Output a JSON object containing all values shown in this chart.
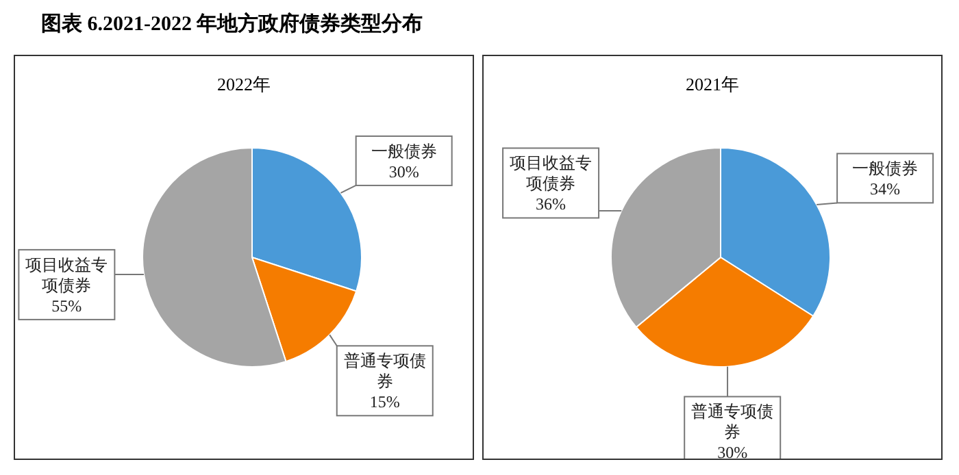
{
  "chart_data": [
    {
      "type": "pie",
      "title": "图表 6.2021-2022 年地方政府债券类型分布",
      "subtitle": "2022年",
      "categories": [
        "一般债券",
        "普通专项债券",
        "项目收益专项债券"
      ],
      "values": [
        30,
        15,
        55
      ],
      "value_labels": [
        "30%",
        "15%",
        "55%"
      ],
      "colors": [
        "#4a9ad8",
        "#f57c00",
        "#a5a5a5"
      ],
      "legend": false
    },
    {
      "type": "pie",
      "subtitle": "2021年",
      "categories": [
        "一般债券",
        "普通专项债券",
        "项目收益专项债券"
      ],
      "values": [
        34,
        30,
        36
      ],
      "value_labels": [
        "34%",
        "30%",
        "36%"
      ],
      "colors": [
        "#4a9ad8",
        "#f57c00",
        "#a5a5a5"
      ],
      "legend": false
    }
  ]
}
